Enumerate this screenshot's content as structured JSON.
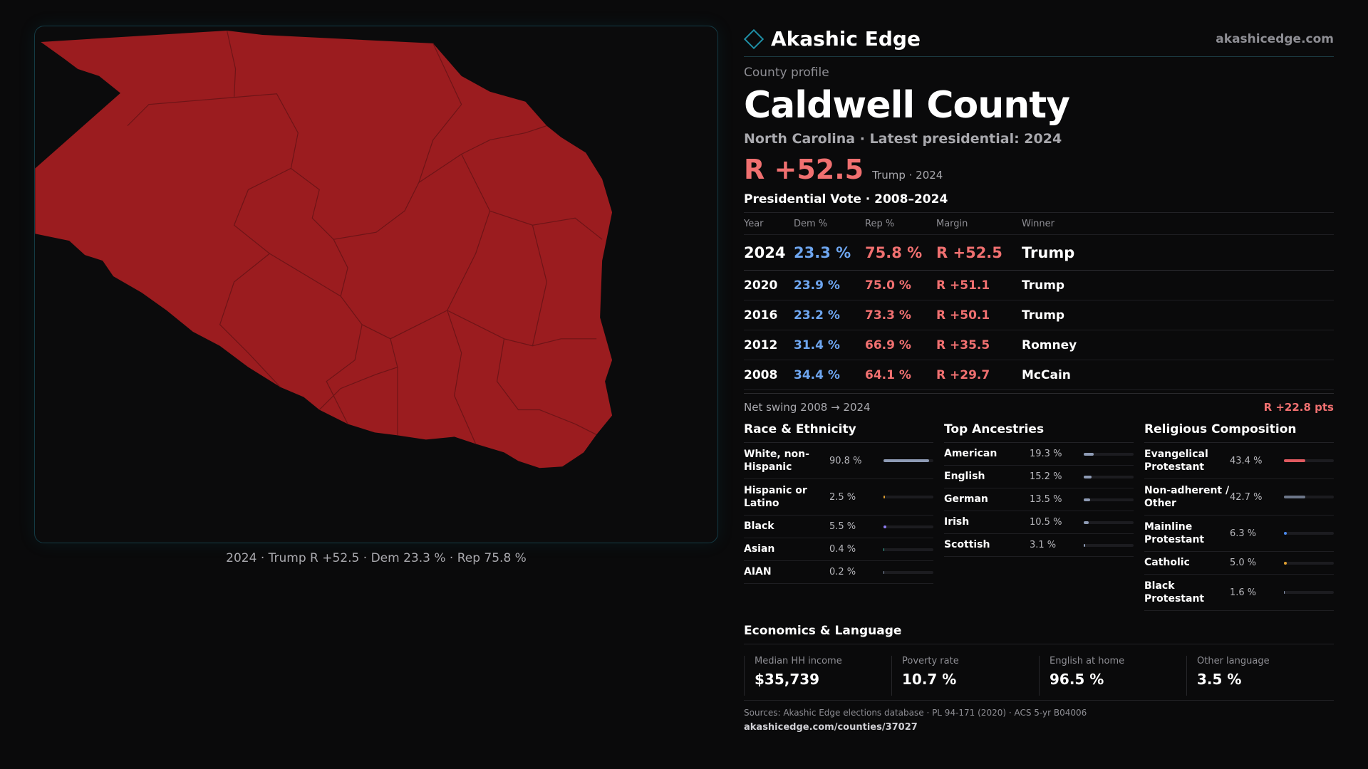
{
  "map": {
    "caption": "2024 · Trump R +52.5 · Dem 23.3 % · Rep 75.8 %",
    "fill_color": "#9b1c1f",
    "border_color": "#6e1417"
  },
  "header": {
    "logo_icon": "diamond-outline-icon",
    "brand": "Akashic Edge",
    "site": "akashicedge.com"
  },
  "profile": {
    "kicker": "County profile",
    "title": "Caldwell County",
    "subtitle": "North Carolina · Latest presidential: 2024",
    "margin": "R +52.5",
    "margin_note": "Trump · 2024"
  },
  "vote": {
    "title": "Presidential Vote · 2008–2024",
    "headers": [
      "Year",
      "Dem %",
      "Rep %",
      "Margin",
      "Winner"
    ],
    "rows": [
      {
        "year": "2024",
        "dem": "23.3 %",
        "rep": "75.8 %",
        "margin": "R +52.5",
        "winner": "Trump"
      },
      {
        "year": "2020",
        "dem": "23.9 %",
        "rep": "75.0 %",
        "margin": "R +51.1",
        "winner": "Trump"
      },
      {
        "year": "2016",
        "dem": "23.2 %",
        "rep": "73.3 %",
        "margin": "R +50.1",
        "winner": "Trump"
      },
      {
        "year": "2012",
        "dem": "31.4 %",
        "rep": "66.9 %",
        "margin": "R +35.5",
        "winner": "Romney"
      },
      {
        "year": "2008",
        "dem": "34.4 %",
        "rep": "64.1 %",
        "margin": "R +29.7",
        "winner": "McCain"
      }
    ],
    "swing_label": "Net swing 2008 → 2024",
    "swing_value": "R +22.8 pts"
  },
  "race": {
    "title": "Race & Ethnicity",
    "rows": [
      {
        "label": "White, non-Hispanic",
        "value": "90.8 %",
        "pct": 90.8,
        "color": "#8e9bb5"
      },
      {
        "label": "Hispanic or Latino",
        "value": "2.5 %",
        "pct": 2.5,
        "color": "#e0a030"
      },
      {
        "label": "Black",
        "value": "5.5 %",
        "pct": 5.5,
        "color": "#8c7cf0"
      },
      {
        "label": "Asian",
        "value": "0.4 %",
        "pct": 0.4,
        "color": "#3cb4a0"
      },
      {
        "label": "AIAN",
        "value": "0.2 %",
        "pct": 0.2,
        "color": "#8e9bb5"
      }
    ]
  },
  "ancestry": {
    "title": "Top Ancestries",
    "rows": [
      {
        "label": "American",
        "value": "19.3 %",
        "pct": 19.3,
        "color": "#8e9bb5"
      },
      {
        "label": "English",
        "value": "15.2 %",
        "pct": 15.2,
        "color": "#8e9bb5"
      },
      {
        "label": "German",
        "value": "13.5 %",
        "pct": 13.5,
        "color": "#8e9bb5"
      },
      {
        "label": "Irish",
        "value": "10.5 %",
        "pct": 10.5,
        "color": "#8e9bb5"
      },
      {
        "label": "Scottish",
        "value": "3.1 %",
        "pct": 3.1,
        "color": "#8e9bb5"
      }
    ]
  },
  "religion": {
    "title": "Religious Composition",
    "rows": [
      {
        "label": "Evangelical Protestant",
        "value": "43.4 %",
        "pct": 43.4,
        "color": "#e05a60"
      },
      {
        "label": "Non-adherent / Other",
        "value": "42.7 %",
        "pct": 42.7,
        "color": "#6c7689"
      },
      {
        "label": "Mainline Protestant",
        "value": "6.3 %",
        "pct": 6.3,
        "color": "#4a8af0"
      },
      {
        "label": "Catholic",
        "value": "5.0 %",
        "pct": 5.0,
        "color": "#e0a030"
      },
      {
        "label": "Black Protestant",
        "value": "1.6 %",
        "pct": 1.6,
        "color": "#8e9bb5"
      }
    ]
  },
  "economics": {
    "title": "Economics & Language",
    "items": [
      {
        "label": "Median HH income",
        "value": "$35,739"
      },
      {
        "label": "Poverty rate",
        "value": "10.7 %"
      },
      {
        "label": "English at home",
        "value": "96.5 %"
      },
      {
        "label": "Other language",
        "value": "3.5 %"
      }
    ]
  },
  "footer": {
    "sources": "Sources: Akashic Edge elections database · PL 94-171 (2020) · ACS 5-yr B04006",
    "link": "akashicedge.com/counties/37027"
  }
}
